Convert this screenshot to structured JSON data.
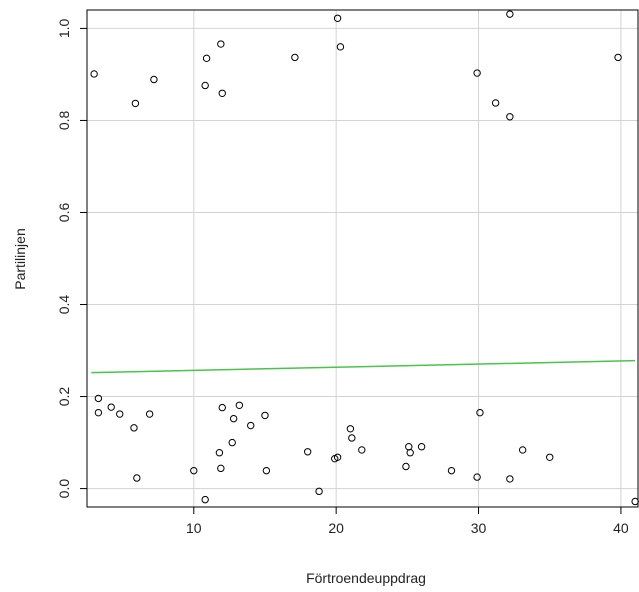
{
  "chart_data": {
    "type": "scatter",
    "title": "",
    "xlabel": "Förtroendeuppdrag",
    "ylabel": "Partilinjen",
    "xlim": [
      2.5,
      41.2
    ],
    "ylim": [
      -0.04,
      1.04
    ],
    "xticks": [
      10,
      20,
      30,
      40
    ],
    "yticks": [
      0.0,
      0.2,
      0.4,
      0.6,
      0.8,
      1.0
    ],
    "xtick_labels": [
      "10",
      "20",
      "30",
      "40"
    ],
    "ytick_labels": [
      "0.0",
      "0.2",
      "0.4",
      "0.6",
      "0.8",
      "1.0"
    ],
    "grid": true,
    "points_color": "#000000",
    "trend_color": "#4cc24c",
    "grid_color": "#d3d3d3",
    "x": [
      3.0,
      7.2,
      5.9,
      10.8,
      10.9,
      11.9,
      12.0,
      17.1,
      20.1,
      20.3,
      29.9,
      31.2,
      32.2,
      32.2,
      39.8,
      3.3,
      3.3,
      4.2,
      4.8,
      5.8,
      6.9,
      6.0,
      10.0,
      10.8,
      11.8,
      11.9,
      12.0,
      12.8,
      12.7,
      13.2,
      14.0,
      15.0,
      15.1,
      18.0,
      18.8,
      19.9,
      20.1,
      21.0,
      21.1,
      21.8,
      24.9,
      25.1,
      25.2,
      26.0,
      28.1,
      29.9,
      30.1,
      32.2,
      33.1,
      35.0,
      41.0
    ],
    "y": [
      0.901,
      0.889,
      0.837,
      0.876,
      0.935,
      0.966,
      0.859,
      0.937,
      1.022,
      0.96,
      0.903,
      0.838,
      0.808,
      1.031,
      0.937,
      0.196,
      0.165,
      0.177,
      0.162,
      0.132,
      0.162,
      0.023,
      0.039,
      -0.024,
      0.078,
      0.044,
      0.176,
      0.152,
      0.1,
      0.181,
      0.137,
      0.159,
      0.039,
      0.08,
      -0.006,
      0.065,
      0.068,
      0.13,
      0.11,
      0.084,
      0.048,
      0.091,
      0.078,
      0.091,
      0.039,
      0.025,
      0.165,
      0.021,
      0.084,
      0.068,
      -0.028
    ],
    "trend_line": {
      "x": [
        2.8,
        41.0
      ],
      "y": [
        0.252,
        0.278
      ]
    }
  }
}
